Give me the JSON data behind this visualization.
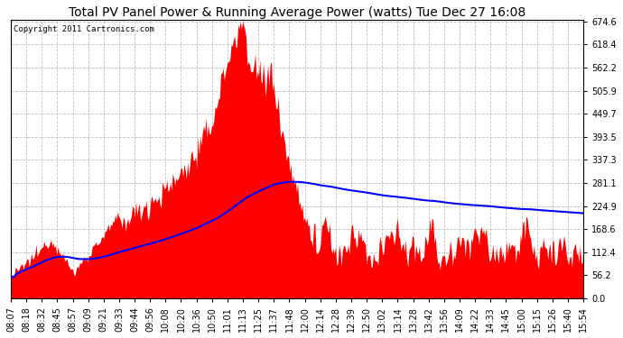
{
  "title": "Total PV Panel Power & Running Average Power (watts) Tue Dec 27 16:08",
  "copyright": "Copyright 2011 Cartronics.com",
  "ymax": 674.6,
  "ymin": 0.0,
  "yticks": [
    0.0,
    56.2,
    112.4,
    168.6,
    224.9,
    281.1,
    337.3,
    393.5,
    449.7,
    505.9,
    562.2,
    618.4,
    674.6
  ],
  "background_color": "#ffffff",
  "fill_color": "#ff0000",
  "avg_line_color": "#0000ff",
  "grid_color": "#b0b0b0",
  "title_fontsize": 10,
  "copyright_fontsize": 6.5,
  "tick_fontsize": 7,
  "x_tick_labels": [
    "08:07",
    "08:18",
    "08:32",
    "08:45",
    "08:57",
    "09:09",
    "09:21",
    "09:33",
    "09:44",
    "09:56",
    "10:08",
    "10:20",
    "10:36",
    "10:50",
    "11:01",
    "11:13",
    "11:25",
    "11:37",
    "11:48",
    "12:00",
    "12:14",
    "12:28",
    "12:39",
    "12:50",
    "13:02",
    "13:14",
    "13:28",
    "13:42",
    "13:56",
    "14:09",
    "14:22",
    "14:33",
    "14:45",
    "15:00",
    "15:15",
    "15:26",
    "15:40",
    "15:54"
  ]
}
